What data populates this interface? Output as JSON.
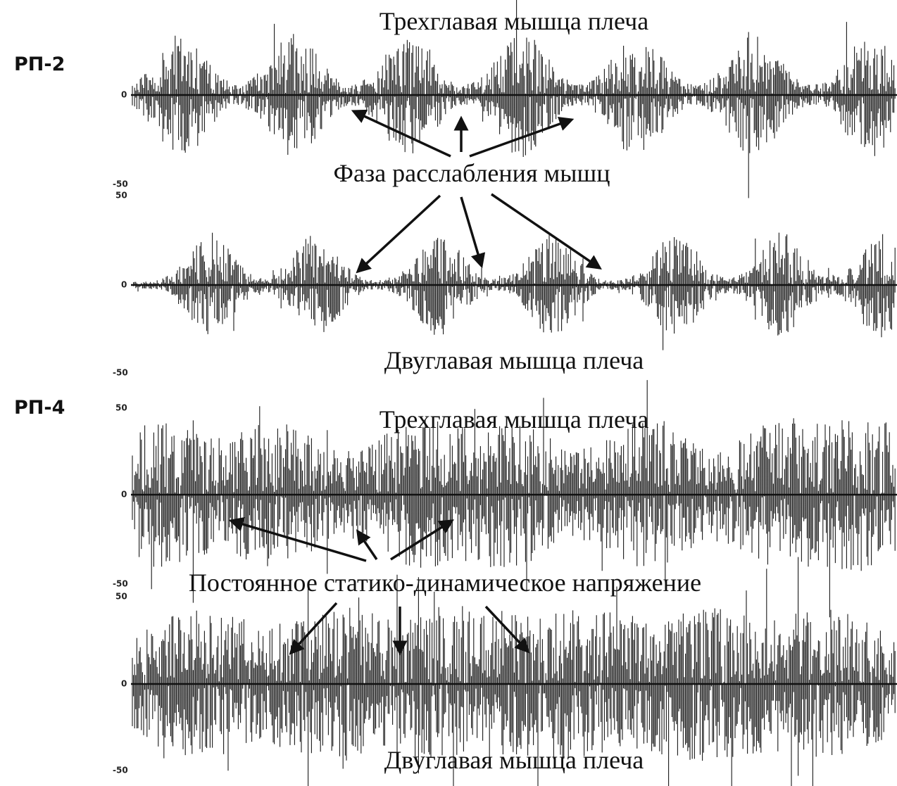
{
  "panels": [
    {
      "label": "РП-2",
      "traces": [
        {
          "title": "Трехглавая мышца плеча",
          "ticks": [
            "0",
            "-50"
          ]
        },
        {
          "title": "Двуглавая мышца плеча",
          "ticks": [
            "50",
            "0",
            "-50"
          ]
        }
      ]
    },
    {
      "label": "РП-4",
      "traces": [
        {
          "title": "Трехглавая мышца плеча",
          "ticks": [
            "50",
            "0",
            "-50"
          ]
        },
        {
          "title": "Двуглавая мышца плеча",
          "ticks": [
            "50",
            "0",
            "-50"
          ]
        }
      ]
    }
  ],
  "annotations": [
    "Фаза расслабления мышц",
    "Постоянное статико-динамическое напряжение"
  ]
}
